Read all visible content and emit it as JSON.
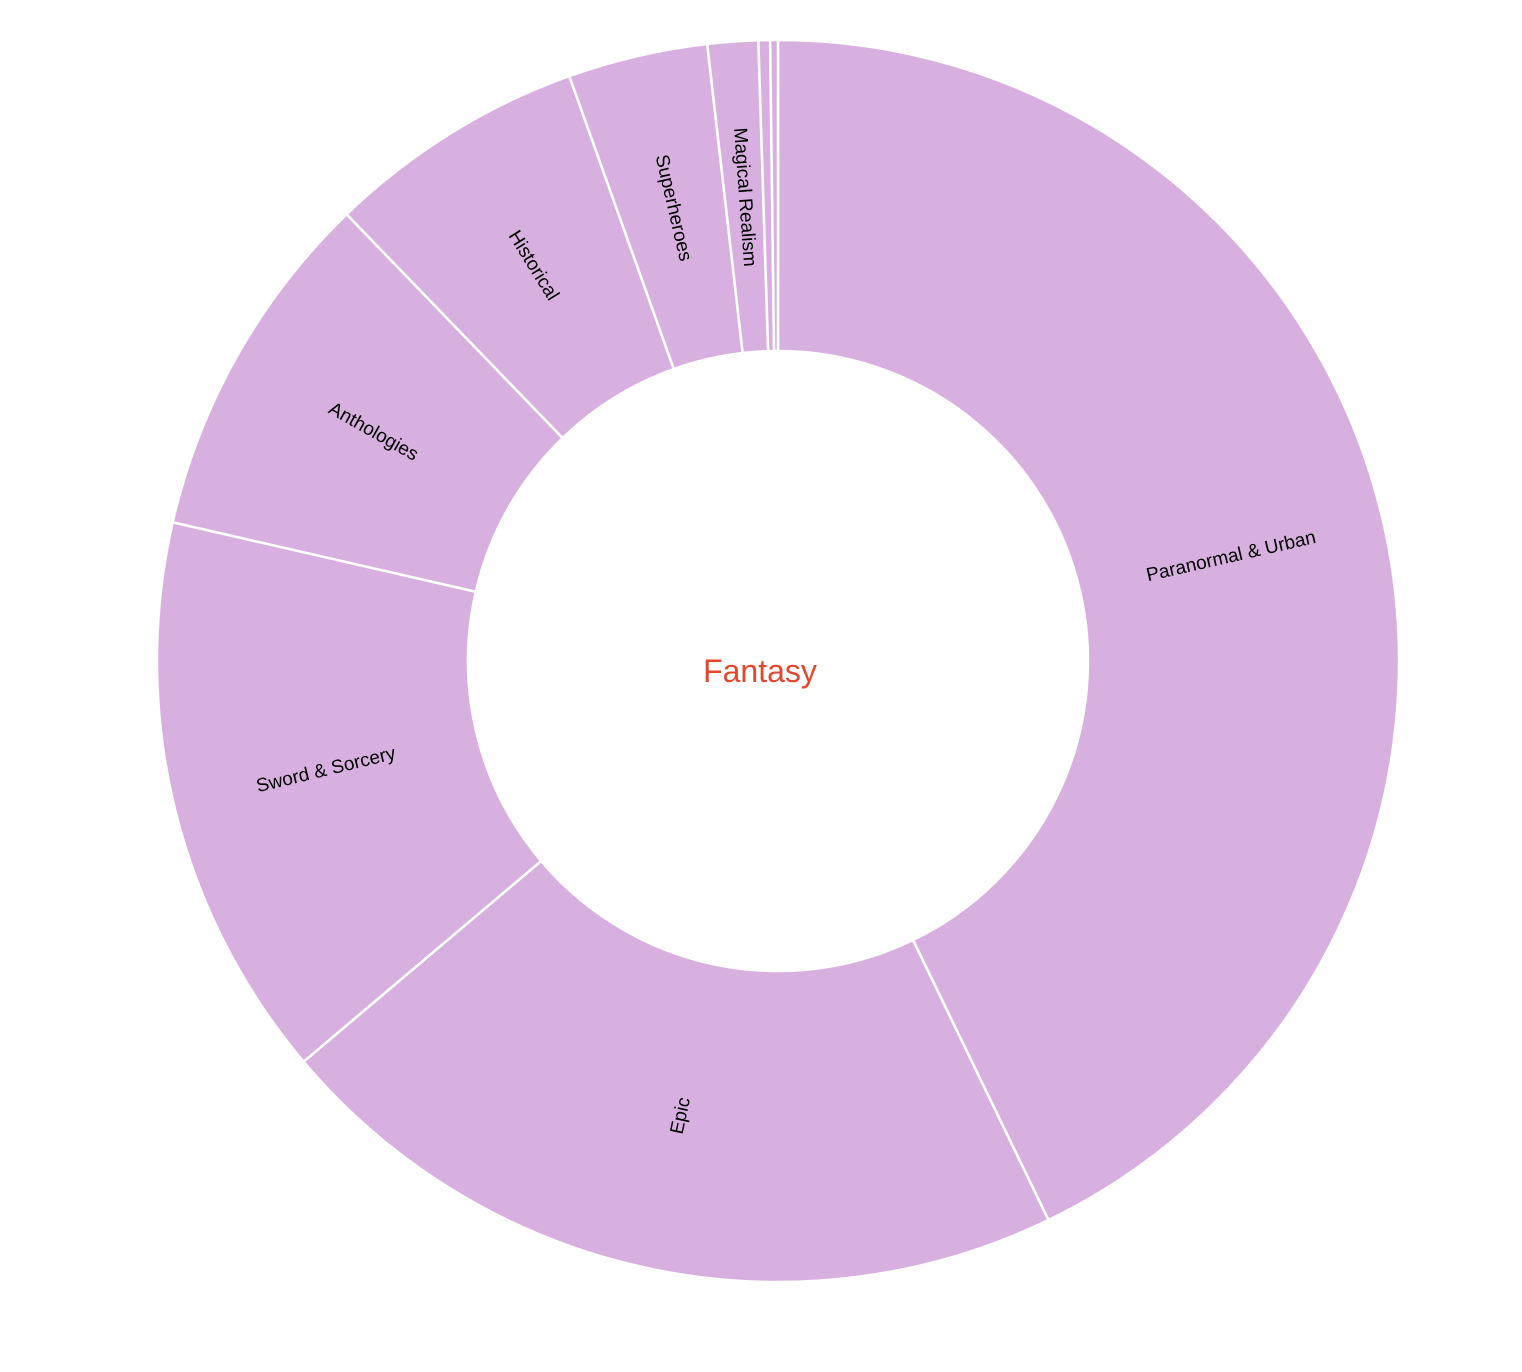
{
  "chart_data": {
    "type": "pie",
    "center_label": "Fantasy",
    "slice_color": "#d7b0df",
    "center_label_color": "#e2472f",
    "slices": [
      {
        "label": "Paranormal & Urban",
        "value": 42.4
      },
      {
        "label": "Epic",
        "value": 20.8
      },
      {
        "label": "Sword & Sorcery",
        "value": 14.6
      },
      {
        "label": "Anthologies",
        "value": 9.1
      },
      {
        "label": "Historical",
        "value": 6.7
      },
      {
        "label": "Superheroes",
        "value": 3.6
      },
      {
        "label": "Magical Realism",
        "value": 1.3
      },
      {
        "label": "",
        "value": 0.3
      },
      {
        "label": "",
        "value": 0.2
      }
    ]
  }
}
